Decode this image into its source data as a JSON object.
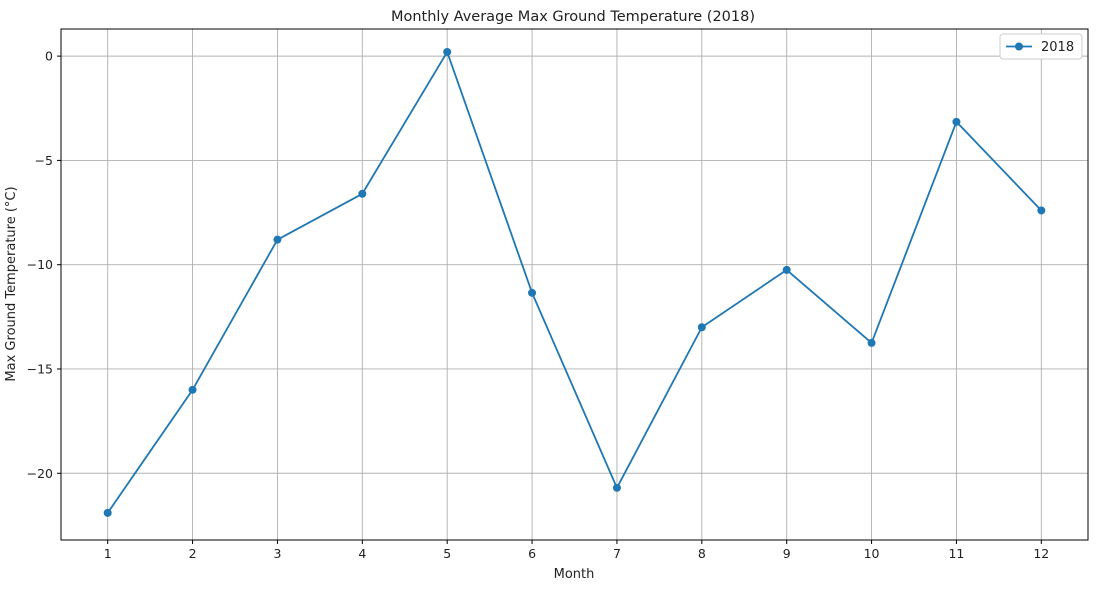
{
  "chart_data": {
    "type": "line",
    "title": "Monthly Average Max Ground Temperature (2018)",
    "xlabel": "Month",
    "ylabel": "Max Ground Temperature (°C)",
    "x": [
      1,
      2,
      3,
      4,
      5,
      6,
      7,
      8,
      9,
      10,
      11,
      12
    ],
    "series": [
      {
        "name": "2018",
        "values": [
          -21.9,
          -16.0,
          -8.8,
          -6.6,
          0.2,
          -11.35,
          -20.7,
          -13.0,
          -10.25,
          -13.75,
          -3.15,
          -7.4
        ]
      }
    ],
    "xticks": [
      "1",
      "2",
      "3",
      "4",
      "5",
      "6",
      "7",
      "8",
      "9",
      "10",
      "11",
      "12"
    ],
    "yticks": [
      0,
      -5,
      -10,
      -15,
      -20
    ],
    "ytick_labels": [
      "0",
      "−5",
      "−10",
      "−15",
      "−20"
    ],
    "xlim": [
      0.45,
      12.55
    ],
    "ylim": [
      -23.2,
      1.3
    ],
    "grid": true,
    "legend_position": "top-right",
    "color": "#1f77b4"
  }
}
